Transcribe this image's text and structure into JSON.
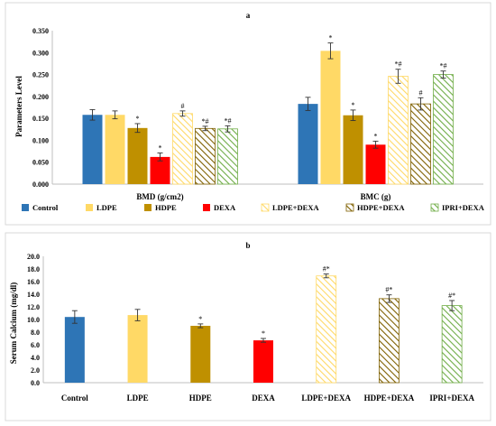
{
  "chart_data": [
    {
      "panel": "a",
      "type": "bar",
      "ylabel": "Parameters Level",
      "ylim": [
        0,
        0.35
      ],
      "yticks": [
        "0.000",
        "0.050",
        "0.100",
        "0.150",
        "0.200",
        "0.250",
        "0.300",
        "0.350"
      ],
      "categories": [
        "BMD (g/cm2)",
        "BMC (g)"
      ],
      "legend_position": "bottom",
      "series": [
        {
          "name": "Control",
          "values": [
            0.158,
            0.183
          ],
          "errors": [
            0.012,
            0.015
          ],
          "marks": [
            "",
            ""
          ]
        },
        {
          "name": "LDPE",
          "values": [
            0.158,
            0.304
          ],
          "errors": [
            0.009,
            0.018
          ],
          "marks": [
            "",
            "*"
          ]
        },
        {
          "name": "HDPE",
          "values": [
            0.128,
            0.157
          ],
          "errors": [
            0.01,
            0.012
          ],
          "marks": [
            "*",
            "*"
          ]
        },
        {
          "name": "DEXA",
          "values": [
            0.062,
            0.09
          ],
          "errors": [
            0.009,
            0.008
          ],
          "marks": [
            "*",
            "*"
          ]
        },
        {
          "name": "LDPE+DEXA",
          "values": [
            0.161,
            0.246
          ],
          "errors": [
            0.006,
            0.016
          ],
          "marks": [
            "#",
            "*#"
          ]
        },
        {
          "name": "HDPE+DEXA",
          "values": [
            0.127,
            0.183
          ],
          "errors": [
            0.005,
            0.014
          ],
          "marks": [
            "*#",
            "#"
          ]
        },
        {
          "name": "IPRI+DEXA",
          "values": [
            0.126,
            0.25
          ],
          "errors": [
            0.007,
            0.008
          ],
          "marks": [
            "*#",
            "*#"
          ]
        }
      ]
    },
    {
      "panel": "b",
      "type": "bar",
      "ylabel": "Serum Calcium (mg/dl)",
      "ylim": [
        0,
        20
      ],
      "yticks": [
        "0.0",
        "2.0",
        "4.0",
        "6.0",
        "8.0",
        "10.0",
        "12.0",
        "14.0",
        "16.0",
        "18.0",
        "20.0"
      ],
      "categories": [
        "Control",
        "LDPE",
        "HDPE",
        "DEXA",
        "LDPE+DEXA",
        "HDPE+DEXA",
        "IPRI+DEXA"
      ],
      "values": [
        10.4,
        10.7,
        9.0,
        6.7,
        16.9,
        13.3,
        12.2
      ],
      "errors": [
        1.0,
        0.9,
        0.3,
        0.3,
        0.3,
        0.6,
        0.8
      ],
      "marks": [
        "",
        "",
        "*",
        "*",
        "#*",
        "#*",
        "#*"
      ]
    }
  ],
  "colors": {
    "Control": "#2e75b6",
    "LDPE": "#ffd966",
    "HDPE": "#bf9000",
    "DEXA": "#ff0000",
    "LDPE+DEXA": "#ffd966",
    "HDPE+DEXA": "#7f6000",
    "IPRI+DEXA": "#70ad47"
  },
  "hatched": [
    "LDPE+DEXA",
    "HDPE+DEXA",
    "IPRI+DEXA"
  ]
}
